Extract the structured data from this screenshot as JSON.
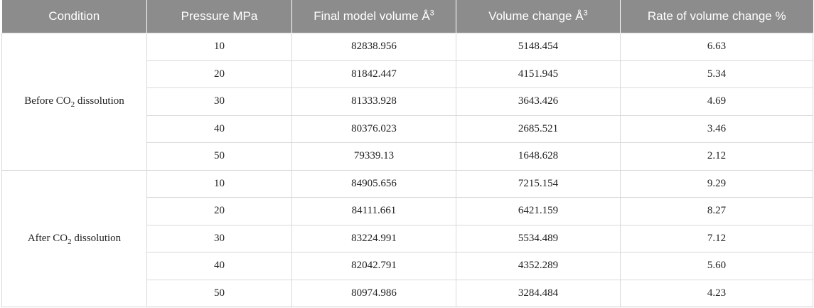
{
  "header": {
    "condition": "Condition",
    "pressure": "Pressure MPa",
    "final_volume": "Final model volume Å",
    "final_volume_sup": "3",
    "volume_change": "Volume change Å",
    "volume_change_sup": "3",
    "rate": "Rate of volume change %"
  },
  "groups": [
    {
      "prefix": "Before CO",
      "sub": "2",
      "suffix": " dissolution",
      "rows": [
        {
          "pressure": "10",
          "final": "82838.956",
          "change": "5148.454",
          "rate": "6.63"
        },
        {
          "pressure": "20",
          "final": "81842.447",
          "change": "4151.945",
          "rate": "5.34"
        },
        {
          "pressure": "30",
          "final": "81333.928",
          "change": "3643.426",
          "rate": "4.69"
        },
        {
          "pressure": "40",
          "final": "80376.023",
          "change": "2685.521",
          "rate": "3.46"
        },
        {
          "pressure": "50",
          "final": "79339.13",
          "change": "1648.628",
          "rate": "2.12"
        }
      ]
    },
    {
      "prefix": "After CO",
      "sub": "2",
      "suffix": " dissolution",
      "rows": [
        {
          "pressure": "10",
          "final": "84905.656",
          "change": "7215.154",
          "rate": "9.29"
        },
        {
          "pressure": "20",
          "final": "84111.661",
          "change": "6421.159",
          "rate": "8.27"
        },
        {
          "pressure": "30",
          "final": "83224.991",
          "change": "5534.489",
          "rate": "7.12"
        },
        {
          "pressure": "40",
          "final": "82042.791",
          "change": "4352.289",
          "rate": "5.60"
        },
        {
          "pressure": "50",
          "final": "80974.986",
          "change": "3284.484",
          "rate": "4.23"
        }
      ]
    }
  ]
}
